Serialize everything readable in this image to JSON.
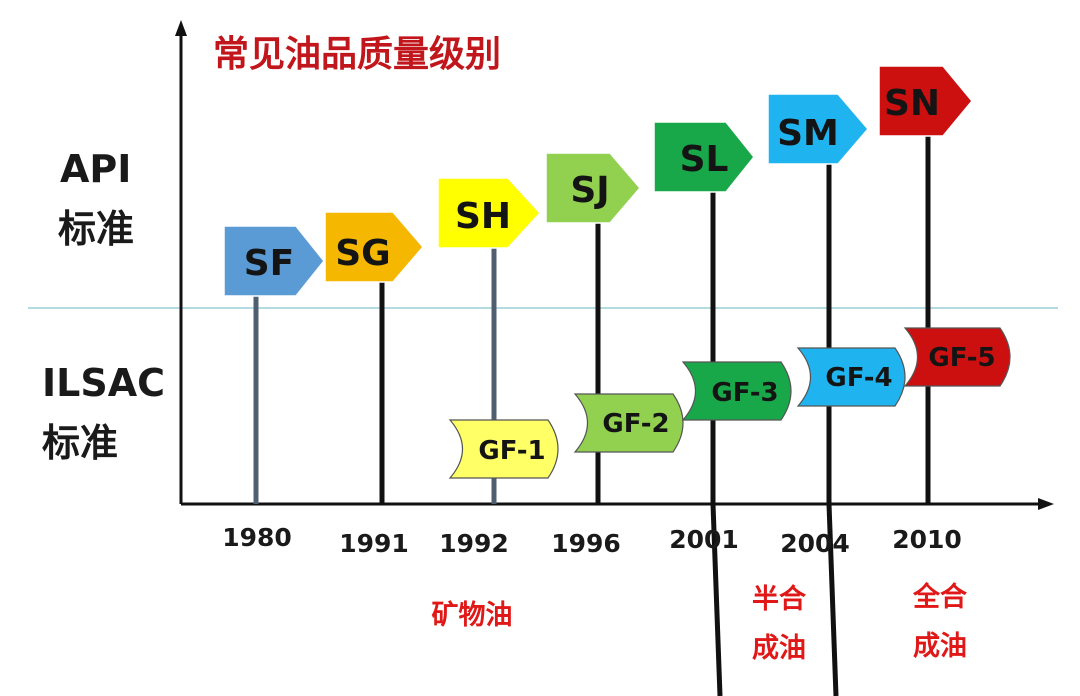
{
  "title": "常见油品质量级别",
  "sections": {
    "api": [
      "API",
      "标准"
    ],
    "ilsac": [
      "ILSAC",
      "标准"
    ]
  },
  "years": [
    "1980",
    "1991",
    "1992",
    "1996",
    "2001",
    "2004",
    "2010"
  ],
  "api_grades": [
    {
      "label": "SF",
      "color": "#5b9bd5"
    },
    {
      "label": "SG",
      "color": "#f5b700"
    },
    {
      "label": "SH",
      "color": "#ffff00"
    },
    {
      "label": "SJ",
      "color": "#92d050"
    },
    {
      "label": "SL",
      "color": "#18a84a"
    },
    {
      "label": "SM",
      "color": "#1fb4f0"
    },
    {
      "label": "SN",
      "color": "#cc1010"
    }
  ],
  "ilsac_grades": [
    {
      "label": "GF-1",
      "color": "#ffff66"
    },
    {
      "label": "GF-2",
      "color": "#92d050"
    },
    {
      "label": "GF-3",
      "color": "#18a84a"
    },
    {
      "label": "GF-4",
      "color": "#1fb4f0"
    },
    {
      "label": "GF-5",
      "color": "#cc1010"
    }
  ],
  "eras": {
    "mineral": "矿物油",
    "semi": [
      "半合",
      "成油"
    ],
    "full": [
      "全合",
      "成油"
    ]
  },
  "colors": {
    "title": "#c0161c",
    "era": "#e01818",
    "divider": "#9ccfd8",
    "axis": "#111111",
    "pole_gray": "#4f5f70"
  }
}
